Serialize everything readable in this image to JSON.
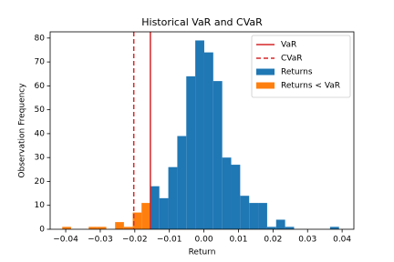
{
  "chart_data": {
    "type": "histogram",
    "title": "Historical VaR and CVaR",
    "x_label": "Return",
    "y_label": "Observation Frequency",
    "xlim": [
      -0.0445,
      0.0434
    ],
    "ylim": [
      0,
      82.6
    ],
    "xticks": [
      {
        "value": -0.04,
        "label": "−0.04"
      },
      {
        "value": -0.03,
        "label": "−0.03"
      },
      {
        "value": -0.02,
        "label": "−0.02"
      },
      {
        "value": -0.01,
        "label": "−0.01"
      },
      {
        "value": 0,
        "label": "0.00"
      },
      {
        "value": 0.01,
        "label": "0.01"
      },
      {
        "value": 0.02,
        "label": "0.02"
      },
      {
        "value": 0.03,
        "label": "0.03"
      },
      {
        "value": 0.04,
        "label": "0.04"
      }
    ],
    "yticks": [
      0,
      10,
      20,
      30,
      40,
      50,
      60,
      70,
      80
    ],
    "legend": "upper right",
    "vlines": [
      {
        "name": "VaR",
        "x": -0.0155,
        "color": "#d62728",
        "style": "solid"
      },
      {
        "name": "CVaR",
        "x": -0.0203,
        "color": "#d62728",
        "style": "dashed"
      }
    ],
    "series": [
      {
        "name": "Returns",
        "color": "#1f77b4",
        "bins": [
          -0.0155,
          -0.0129,
          -0.0103,
          -0.0077,
          -0.0051,
          -0.0025,
          0.0001,
          0.0027,
          0.0053,
          0.0079,
          0.0105,
          0.0131,
          0.0157,
          0.0183,
          0.0209,
          0.0235,
          0.0261,
          0.0287,
          0.0313,
          0.0339,
          0.0365,
          0.0391
        ],
        "values": [
          18,
          13,
          26,
          39,
          64,
          79,
          74,
          62,
          30,
          27,
          14,
          11,
          11,
          1,
          4,
          1,
          0,
          0,
          0,
          0,
          1
        ]
      },
      {
        "name": "Returns < VaR",
        "color": "#ff7f0e",
        "bins": [
          -0.041,
          -0.03845,
          -0.0359,
          -0.03335,
          -0.0308,
          -0.02825,
          -0.0257,
          -0.02315,
          -0.0206,
          -0.01805,
          -0.0155
        ],
        "values": [
          1,
          0,
          0,
          1,
          1,
          0,
          3,
          1,
          7,
          11
        ]
      }
    ]
  }
}
